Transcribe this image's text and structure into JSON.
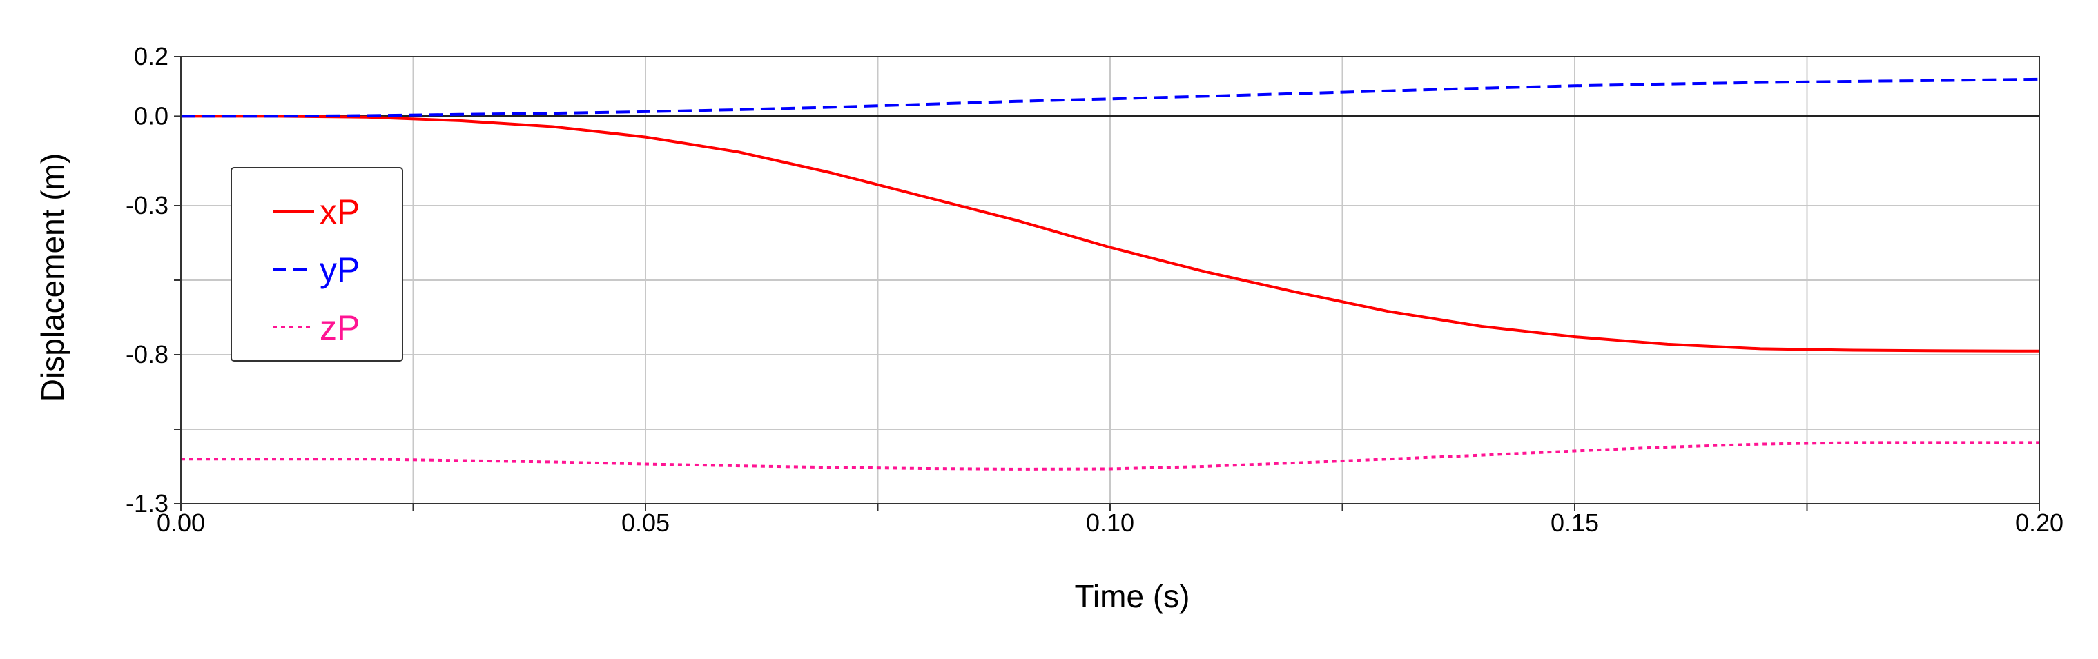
{
  "chart_data": {
    "type": "line",
    "title": "",
    "xlabel": "Time (s)",
    "ylabel": "Displacement (m)",
    "xlim": [
      0,
      0.2
    ],
    "ylim": [
      -1.3,
      0.2
    ],
    "x_ticks": [
      0,
      0.025,
      0.05,
      0.075,
      0.1,
      0.125,
      0.15,
      0.175,
      0.2
    ],
    "x_tick_labels": [
      "0.00",
      "",
      "0.05",
      "",
      "0.10",
      "",
      "0.15",
      "",
      "0.20"
    ],
    "y_ticks": [
      0.2,
      0.0,
      -0.3,
      -0.55,
      -0.8,
      -1.05,
      -1.3
    ],
    "y_tick_labels": [
      "0.2",
      "0.0",
      "-0.3",
      "",
      "-0.8",
      "",
      "-1.3"
    ],
    "grid": true,
    "zero_line": true,
    "legend_position": "top-left",
    "x": [
      0.0,
      0.01,
      0.02,
      0.03,
      0.04,
      0.05,
      0.06,
      0.07,
      0.08,
      0.09,
      0.1,
      0.11,
      0.12,
      0.13,
      0.14,
      0.15,
      0.16,
      0.17,
      0.18,
      0.19,
      0.2
    ],
    "series": [
      {
        "name": "xP",
        "color": "#ff0000",
        "dash": "solid",
        "values": [
          0.0,
          0.0,
          -0.003,
          -0.015,
          -0.035,
          -0.07,
          -0.12,
          -0.19,
          -0.27,
          -0.35,
          -0.44,
          -0.52,
          -0.59,
          -0.655,
          -0.705,
          -0.74,
          -0.765,
          -0.78,
          -0.785,
          -0.787,
          -0.788
        ]
      },
      {
        "name": "yP",
        "color": "#0000ff",
        "dash": "dashed",
        "values": [
          0.0,
          0.0,
          0.002,
          0.006,
          0.01,
          0.015,
          0.022,
          0.03,
          0.04,
          0.05,
          0.058,
          0.067,
          0.076,
          0.085,
          0.094,
          0.102,
          0.108,
          0.113,
          0.117,
          0.12,
          0.124
        ]
      },
      {
        "name": "zP",
        "color": "#ff1493",
        "dash": "dotted",
        "values": [
          -1.15,
          -1.15,
          -1.15,
          -1.155,
          -1.16,
          -1.167,
          -1.173,
          -1.178,
          -1.182,
          -1.184,
          -1.183,
          -1.175,
          -1.163,
          -1.15,
          -1.137,
          -1.123,
          -1.11,
          -1.1,
          -1.095,
          -1.095,
          -1.095
        ]
      }
    ]
  }
}
